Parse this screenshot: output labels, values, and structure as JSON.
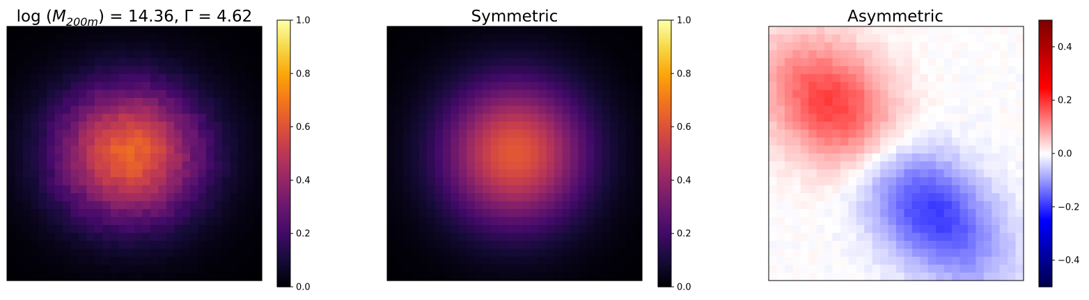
{
  "chart_data": [
    {
      "type": "heatmap",
      "title": "log(M200m) = 14.36, Γ = 4.62",
      "title_parts": {
        "prefix": "log",
        "var": "M",
        "sub": "200m",
        "eq1": " = 14.36, ",
        "gamma": "Γ",
        "eq2": " = 4.62"
      },
      "grid": {
        "rows": 32,
        "cols": 32
      },
      "colormap": "inferno",
      "field": {
        "kind": "blob",
        "center": [
          0.48,
          0.5
        ],
        "sigma": [
          0.205,
          0.19
        ],
        "peak": 0.65,
        "noise": 0.03
      },
      "colorbar": {
        "vmin": 0.0,
        "vmax": 1.0,
        "ticks": [
          "0.0",
          "0.2",
          "0.4",
          "0.6",
          "0.8",
          "1.0"
        ]
      },
      "axes_ticks": false
    },
    {
      "type": "heatmap",
      "title": "Symmetric",
      "grid": {
        "rows": 32,
        "cols": 32
      },
      "colormap": "inferno",
      "field": {
        "kind": "blob",
        "center": [
          0.5,
          0.5
        ],
        "sigma": [
          0.2,
          0.2
        ],
        "peak": 0.62,
        "noise": 0.0
      },
      "colorbar": {
        "vmin": 0.0,
        "vmax": 1.0,
        "ticks": [
          "0.0",
          "0.2",
          "0.4",
          "0.6",
          "0.8",
          "1.0"
        ]
      },
      "axes_ticks": false
    },
    {
      "type": "heatmap",
      "title": "Asymmetric",
      "grid": {
        "rows": 32,
        "cols": 32
      },
      "colormap": "seismic",
      "field": {
        "kind": "dipole",
        "positive_lobe": {
          "center": [
            0.26,
            0.32
          ],
          "amplitude": 0.2
        },
        "negative_lobe": {
          "center": [
            0.63,
            0.72
          ],
          "amplitude": -0.2
        }
      },
      "colorbar": {
        "vmin": -0.5,
        "vmax": 0.5,
        "ticks": [
          "−0.4",
          "−0.2",
          "0.0",
          "0.2",
          "0.4"
        ]
      },
      "axes_ticks": false
    }
  ]
}
